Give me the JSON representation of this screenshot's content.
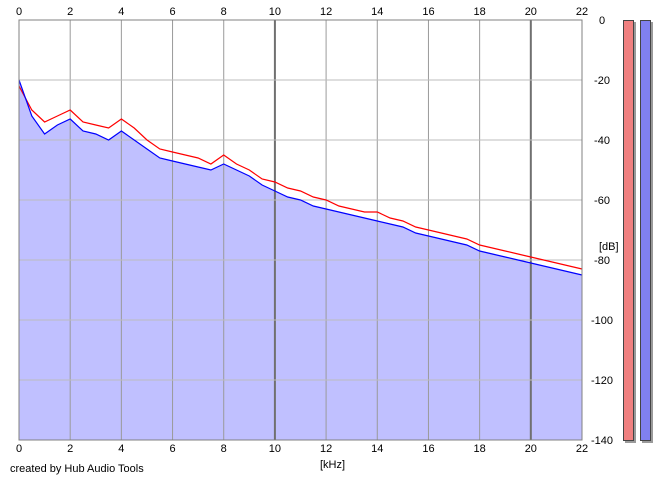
{
  "footer_text": "created by Hub Audio Tools",
  "chart_data": {
    "type": "area",
    "xlabel": "[kHz]",
    "ylabel": "[dB]",
    "xlim": [
      0,
      22
    ],
    "ylim": [
      -140,
      0
    ],
    "x_ticks": [
      "0",
      "2",
      "4",
      "6",
      "8",
      "10",
      "12",
      "14",
      "16",
      "18",
      "20",
      "22"
    ],
    "y_ticks": [
      "0",
      "-20",
      "-40",
      "-60",
      "-80",
      "-100",
      "-120",
      "-140"
    ],
    "grid": true,
    "x": [
      0,
      0.5,
      1,
      1.5,
      2,
      2.5,
      3,
      3.5,
      4,
      4.5,
      5,
      5.5,
      6,
      6.5,
      7,
      7.5,
      8,
      8.5,
      9,
      9.5,
      10,
      10.5,
      11,
      11.5,
      12,
      12.5,
      13,
      13.5,
      14,
      14.5,
      15,
      15.5,
      16,
      16.5,
      17,
      17.5,
      18,
      18.5,
      19,
      19.5,
      20,
      20.5,
      21,
      21.5,
      22
    ],
    "series": [
      {
        "color": "#ff0000",
        "values": [
          -22,
          -30,
          -34,
          -32,
          -30,
          -34,
          -35,
          -36,
          -33,
          -36,
          -40,
          -43,
          -44,
          -45,
          -46,
          -48,
          -45,
          -48,
          -50,
          -53,
          -54,
          -56,
          -57,
          -59,
          -60,
          -62,
          -63,
          -64,
          -64,
          -66,
          -67,
          -69,
          -70,
          -71,
          -72,
          -73,
          -75,
          -76,
          -77,
          -78,
          -79,
          -80,
          -81,
          -82,
          -83
        ]
      },
      {
        "color": "#0000ff",
        "values": [
          -20,
          -32,
          -38,
          -35,
          -33,
          -37,
          -38,
          -40,
          -37,
          -40,
          -43,
          -46,
          -47,
          -48,
          -49,
          -50,
          -48,
          -50,
          -52,
          -55,
          -57,
          -59,
          -60,
          -62,
          -63,
          -64,
          -65,
          -66,
          -67,
          -68,
          -69,
          -71,
          -72,
          -73,
          -74,
          -75,
          -77,
          -78,
          -79,
          -80,
          -81,
          -82,
          -83,
          -84,
          -85
        ]
      }
    ],
    "fill_color": "#c0c0ff",
    "meter_colors": [
      "#f08080",
      "#8080f0"
    ]
  }
}
